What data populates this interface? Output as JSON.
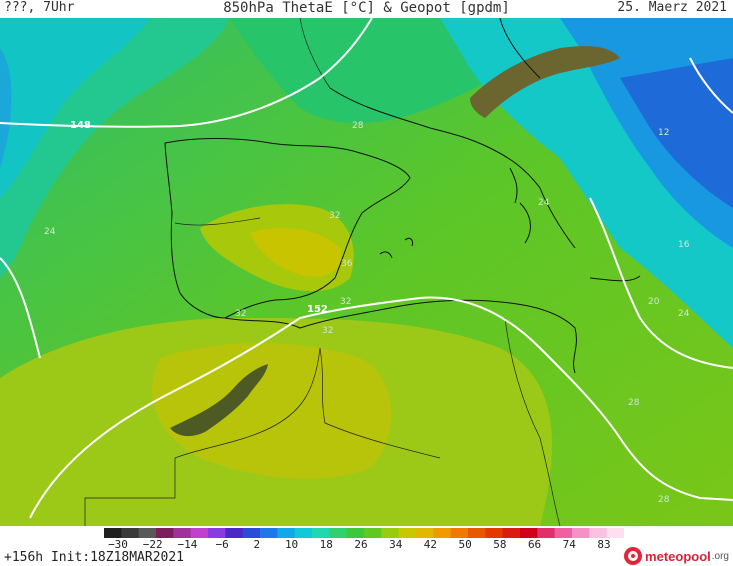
{
  "header": {
    "left": "???, 7Uhr",
    "title": "850hPa ThetaE [°C] & Geopot [gpdm]",
    "date": "25. Maerz 2021"
  },
  "footer": {
    "init": "+156h Init:18Z18MAR2021",
    "logo_name": "meteopool",
    "logo_suffix": ".org"
  },
  "legend": {
    "ticks": [
      "−30",
      "−22",
      "−14",
      "−6",
      "2",
      "10",
      "18",
      "26",
      "34",
      "42",
      "50",
      "58",
      "66",
      "74",
      "83"
    ],
    "colors": [
      "#202020",
      "#3a3a3a",
      "#585858",
      "#7a1f5c",
      "#a0309a",
      "#c040d0",
      "#8a3be0",
      "#4a28c8",
      "#2a4ad8",
      "#1e78e8",
      "#10a8e8",
      "#10c8d8",
      "#20d8b0",
      "#30d070",
      "#3cc83a",
      "#60c820",
      "#98cc10",
      "#c8c800",
      "#e0b800",
      "#f09a00",
      "#f07a00",
      "#e85800",
      "#e03a00",
      "#d81c10",
      "#d00018",
      "#e0306a",
      "#f060a0",
      "#f890c8",
      "#fcc0e0",
      "#fde0f0"
    ]
  },
  "contours": {
    "geopot": [
      "148",
      "152"
    ],
    "thetae": [
      "28",
      "24",
      "32",
      "32",
      "36",
      "32",
      "32",
      "12",
      "16",
      "20",
      "24",
      "28",
      "28",
      "24"
    ]
  }
}
